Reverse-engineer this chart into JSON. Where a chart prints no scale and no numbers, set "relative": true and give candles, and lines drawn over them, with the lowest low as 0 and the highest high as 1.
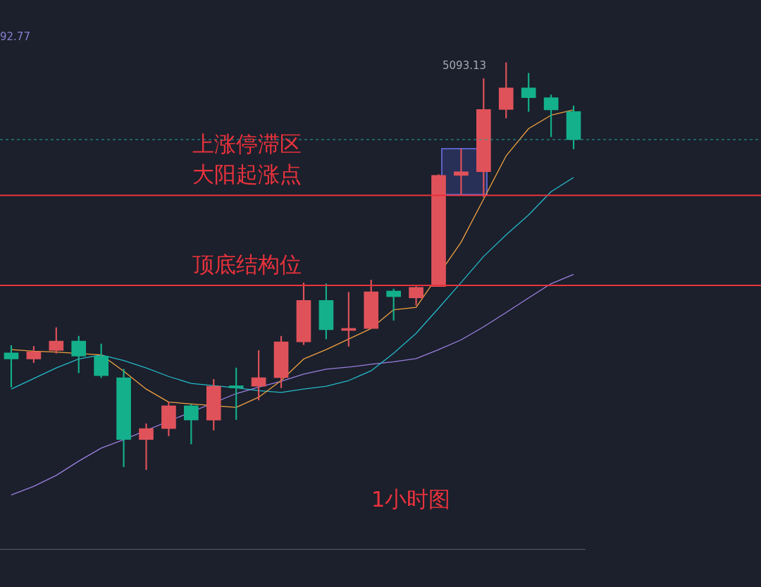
{
  "chart_data": {
    "type": "candlestick",
    "relative": true,
    "categories": [
      null,
      null,
      null,
      null,
      null,
      null,
      null,
      null,
      null,
      null,
      null,
      null,
      null,
      null,
      null,
      null,
      null,
      null,
      null,
      null,
      null,
      null,
      null,
      null,
      null,
      null
    ],
    "ohlc": [
      [
        0.287,
        0.305,
        0.203,
        0.272
      ],
      [
        0.272,
        0.303,
        0.263,
        0.29
      ],
      [
        0.293,
        0.349,
        0.286,
        0.316
      ],
      [
        0.316,
        0.328,
        0.238,
        0.279
      ],
      [
        0.279,
        0.309,
        0.226,
        0.231
      ],
      [
        0.226,
        0.247,
        0.007,
        0.074
      ],
      [
        0.074,
        0.113,
        0,
        0.101
      ],
      [
        0.101,
        0.166,
        0.083,
        0.157
      ],
      [
        0.157,
        0.16,
        0.063,
        0.122
      ],
      [
        0.122,
        0.222,
        0.097,
        0.205
      ],
      [
        0.205,
        0.25,
        0.123,
        0.201
      ],
      [
        0.205,
        0.293,
        0.171,
        0.226
      ],
      [
        0.226,
        0.328,
        0.201,
        0.314
      ],
      [
        0.314,
        0.459,
        0.307,
        0.416
      ],
      [
        0.416,
        0.457,
        0.321,
        0.344
      ],
      [
        0.342,
        0.436,
        0.303,
        0.346
      ],
      [
        0.347,
        0.466,
        0.347,
        0.437
      ],
      [
        0.439,
        0.444,
        0.367,
        0.425
      ],
      [
        0.422,
        0.45,
        0.404,
        0.448
      ],
      [
        0.45,
        0.725,
        0.45,
        0.723
      ],
      [
        0.723,
        0.788,
        0.677,
        0.732
      ],
      [
        0.732,
        0.961,
        0.67,
        0.885
      ],
      [
        0.885,
        1,
        0.864,
        0.938
      ],
      [
        0.938,
        0.974,
        0.88,
        0.914
      ],
      [
        0.914,
        0.921,
        0.818,
        0.884
      ],
      [
        0.88,
        0.894,
        0.788,
        0.811
      ]
    ],
    "colors": [
      "#14b08c",
      "#e0525a",
      "#e0525a",
      "#14b08c",
      "#14b08c",
      "#14b08c",
      "#e0525a",
      "#e0525a",
      "#14b08c",
      "#e0525a",
      "#14b08c",
      "#e0525a",
      "#e0525a",
      "#e0525a",
      "#14b08c",
      "#e0525a",
      "#e0525a",
      "#14b08c",
      "#e0525a",
      "#e0525a",
      "#e0525a",
      "#e0525a",
      "#e0525a",
      "#14b08c",
      "#14b08c",
      "#14b08c"
    ],
    "series": [
      {
        "type": "line",
        "color": "#f0a040",
        "values": [
          0.295,
          0.291,
          0.289,
          null,
          0.282,
          0.242,
          0.198,
          0.166,
          null,
          null,
          0.153,
          0.178,
          0.219,
          0.272,
          0.295,
          0.321,
          0.347,
          0.393,
          0.399,
          null,
          0.559,
          0.665,
          0.771,
          0.838,
          0.871,
          0.884
        ]
      },
      {
        "type": "line",
        "color": "#26b8c8",
        "values": [
          0.198,
          0.224,
          0.25,
          0.272,
          0.282,
          0.268,
          0.25,
          0.229,
          0.212,
          null,
          0.201,
          0.194,
          0.19,
          0.198,
          0.205,
          0.219,
          0.243,
          0.286,
          0.335,
          0.397,
          0.46,
          0.524,
          0.577,
          0.626,
          0.683,
          0.718
        ]
      },
      {
        "type": "line",
        "color": "#9b7fe0",
        "values": [
          -0.062,
          -0.041,
          -0.014,
          0.021,
          0.053,
          0.074,
          null,
          null,
          null,
          null,
          0.187,
          0.203,
          0.217,
          0.235,
          0.247,
          0.252,
          0.259,
          0.265,
          0.273,
          0.295,
          0.319,
          0.351,
          0.386,
          0.422,
          0.457,
          0.48
        ]
      }
    ],
    "ref_lines": [
      {
        "axis": "y",
        "value": 0.674,
        "label": "大阳起涨点",
        "color": "#e8323c"
      },
      {
        "axis": "y",
        "value": 0.453,
        "label": "顶底结构位",
        "color": "#e8323c"
      },
      {
        "axis": "y",
        "value": 0.811,
        "color": "#26a69a",
        "line_style": "dashed"
      }
    ],
    "annotations": [
      "上涨停滞区",
      "5093.13",
      "92.77",
      "1小时图"
    ]
  }
}
